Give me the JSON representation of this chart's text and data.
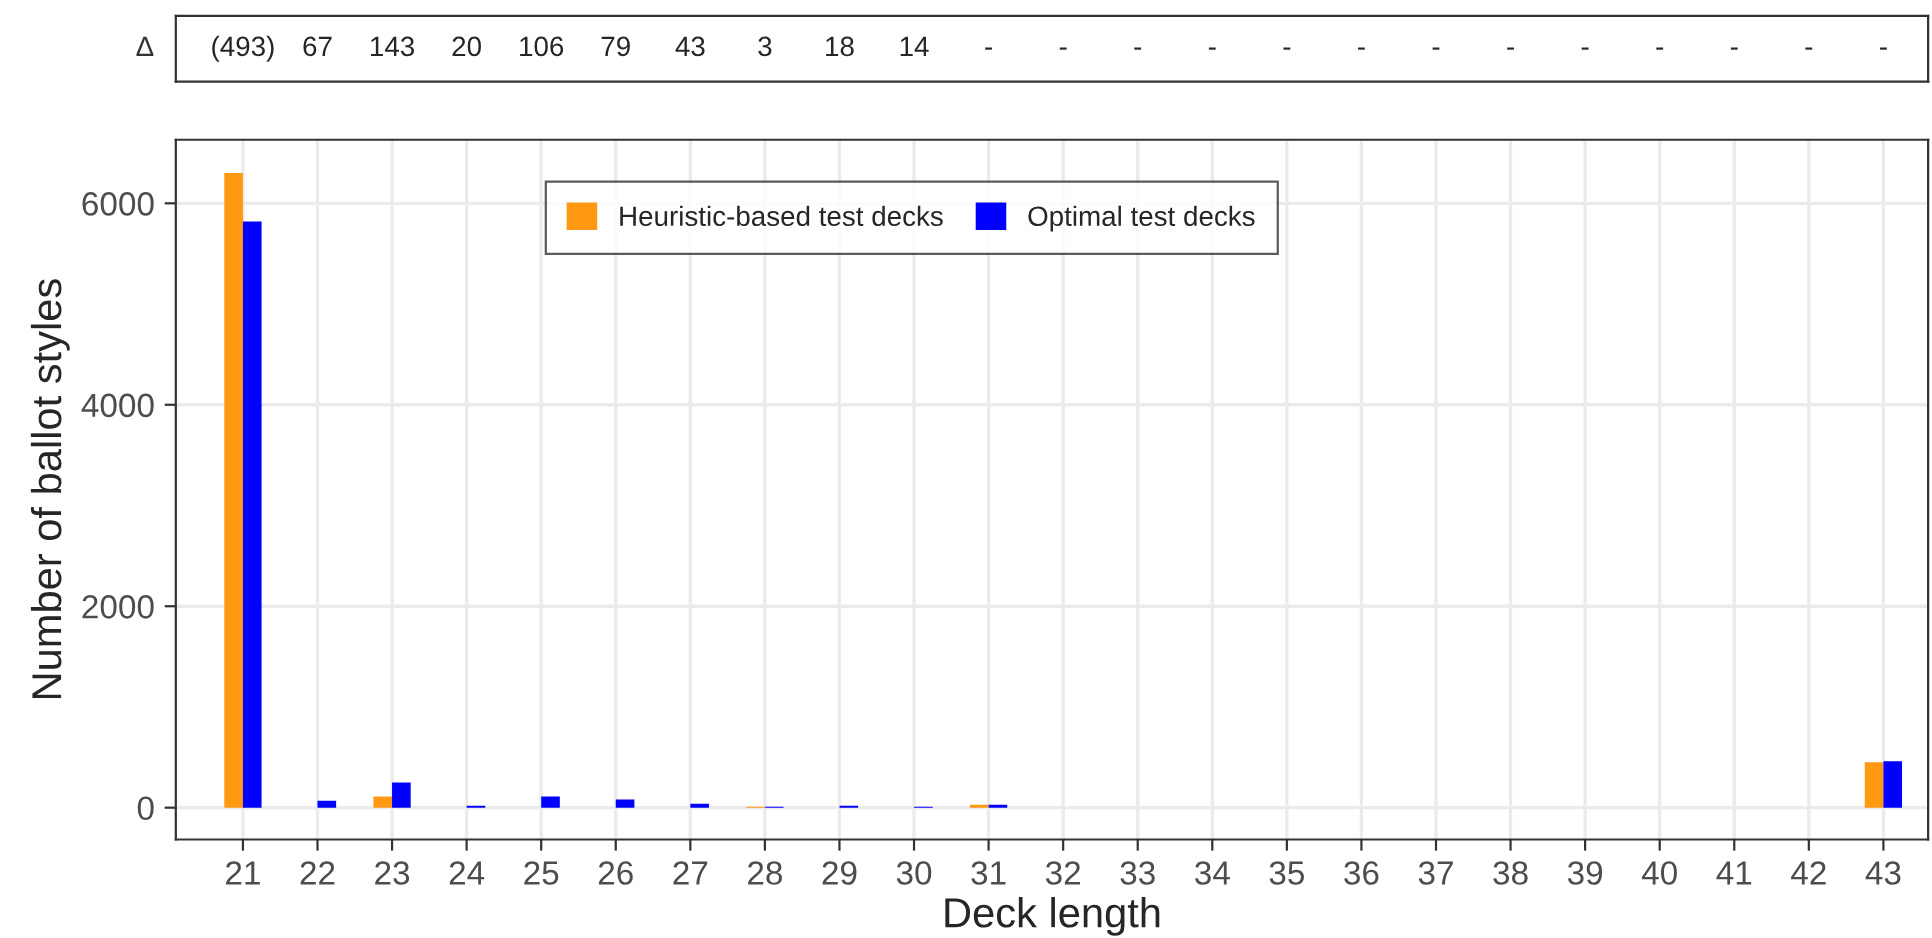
{
  "chart_data": {
    "type": "bar",
    "categories": [
      "21",
      "22",
      "23",
      "24",
      "25",
      "26",
      "27",
      "28",
      "29",
      "30",
      "31",
      "32",
      "33",
      "34",
      "35",
      "36",
      "37",
      "38",
      "39",
      "40",
      "41",
      "42",
      "43"
    ],
    "series": [
      {
        "name": "Heuristic-based test decks",
        "color": "#ff9912",
        "values": [
          6300,
          null,
          110,
          null,
          null,
          null,
          null,
          10,
          null,
          null,
          30,
          null,
          null,
          null,
          null,
          null,
          null,
          null,
          null,
          null,
          null,
          null,
          450
        ]
      },
      {
        "name": "Optimal test decks",
        "color": "#0000ff",
        "values": [
          5820,
          70,
          250,
          20,
          110,
          80,
          40,
          10,
          20,
          10,
          30,
          null,
          null,
          null,
          null,
          null,
          null,
          null,
          null,
          null,
          null,
          null,
          460
        ]
      }
    ],
    "xlabel": "Deck length",
    "ylabel": "Number of ballot styles",
    "ylim": [
      -316,
      6631
    ],
    "yticks": [
      0,
      2000,
      4000,
      6000
    ],
    "grid": true,
    "legend": "top",
    "annotations": [
      "Δ",
      "(493)",
      "67",
      "143",
      "20",
      "106",
      "79",
      "43",
      "3",
      "18",
      "14",
      "-",
      "-",
      "-",
      "-",
      "-",
      "-",
      "-",
      "-",
      "-",
      "-",
      "-",
      "-",
      "-"
    ]
  }
}
